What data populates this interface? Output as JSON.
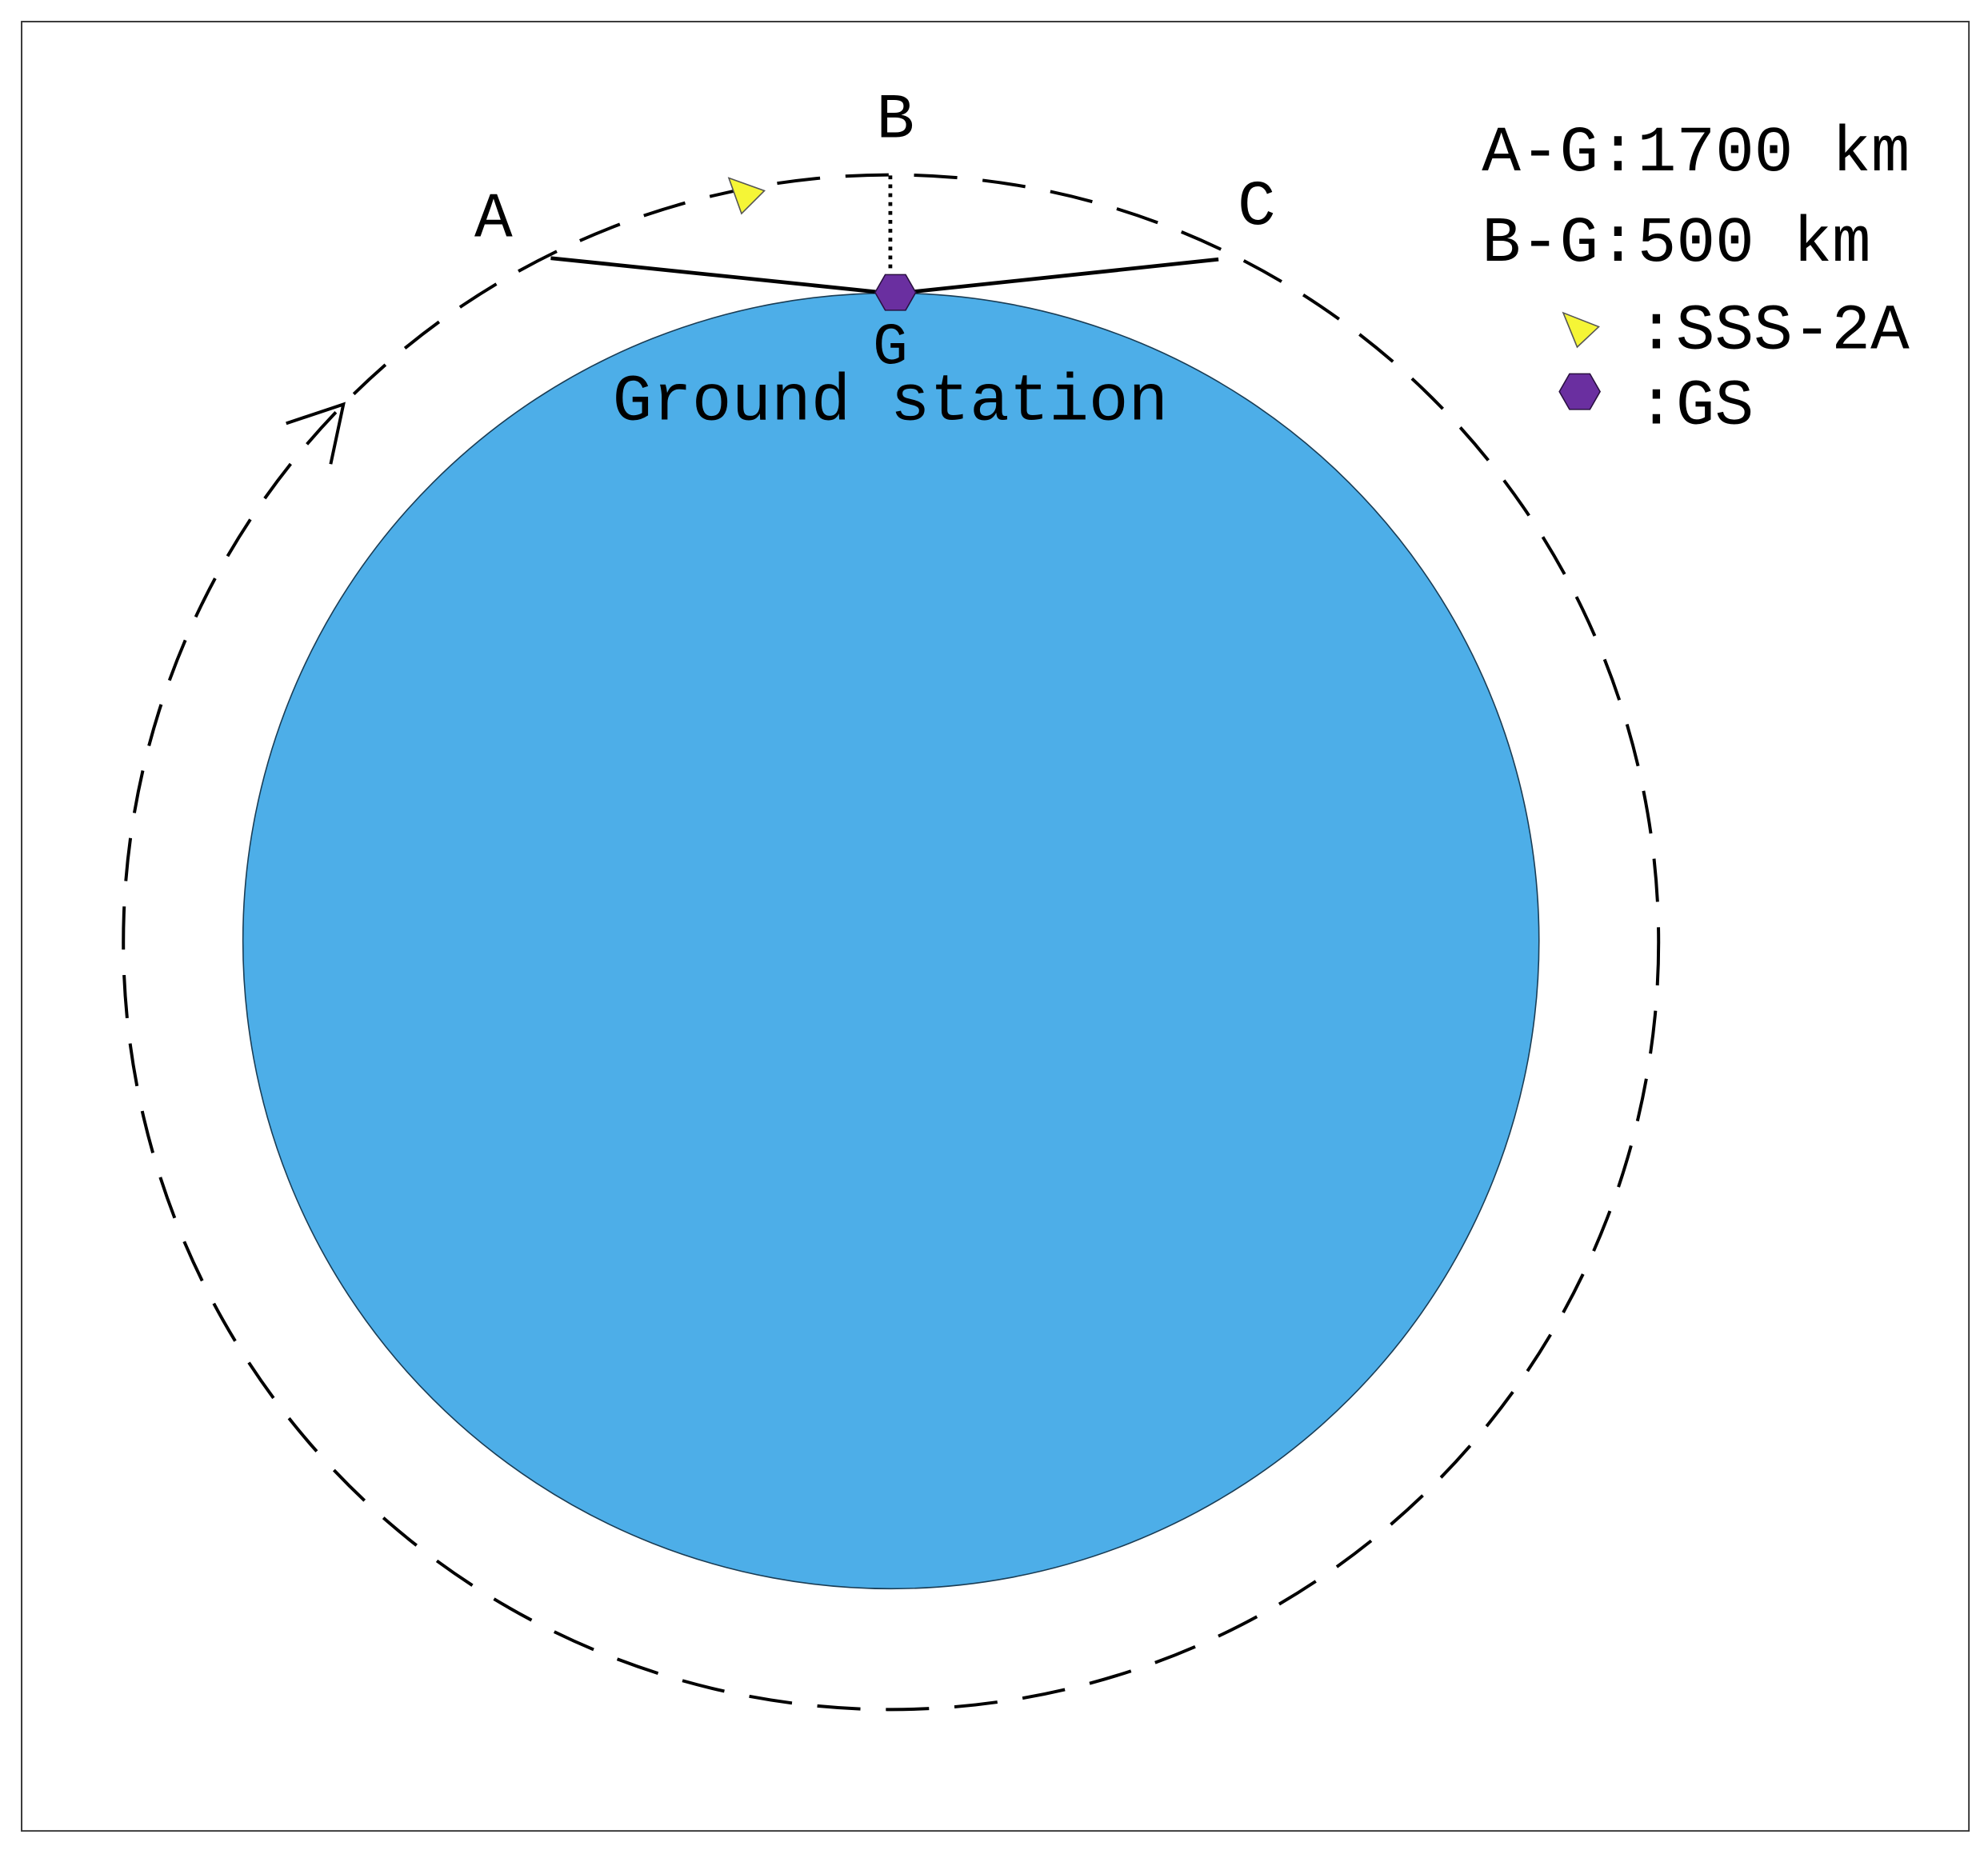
{
  "points": {
    "a": "A",
    "b": "B",
    "c": "C",
    "g": "G"
  },
  "ground_label": "Ground station",
  "legend": {
    "distances": [
      "A-G:1700 km",
      "B-G:500 km"
    ],
    "symbols": [
      ":SSS-2A",
      ":GS"
    ]
  }
}
